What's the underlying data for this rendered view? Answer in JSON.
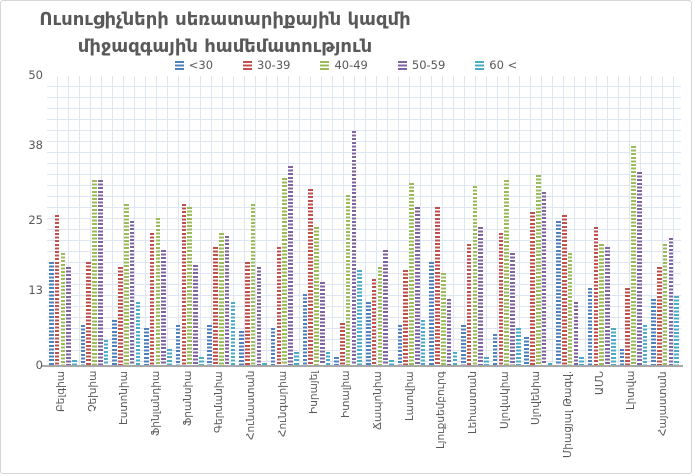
{
  "chart": {
    "title_line1": "Ուսուցիչների սեռատարիքային կազմի",
    "title_line2": "միջազգային համեմատություն"
  },
  "chart_data": {
    "type": "bar",
    "title": "Ուսուցիչների սեռատարիքային կազմի միջազգային համեմատություն",
    "xlabel": "",
    "ylabel": "",
    "ylim": [
      0,
      50
    ],
    "y_ticks": [
      0,
      13,
      25,
      38,
      50
    ],
    "grid": "fine dotted mesh, both directions",
    "legend_position": "top",
    "bar_fill_pattern": "horizontal-stripes",
    "categories": [
      "Բելգիա",
      "Չեխիա",
      "Էստոնիա",
      "Ֆինլանդիա",
      "Ֆրանսիա",
      "Գերմանիա",
      "Հունաստան",
      "Հունգարիա",
      "Իսրայել",
      "Իտալիա",
      "Ճապոնիա",
      "Լատվիա",
      "Լյուքսեմբուրգ",
      "Լեհաստան",
      "Սլովակիա",
      "Սլովենիա",
      "Միացյալ Թագվ.",
      "ԱՄՆ",
      "Լիտվա",
      "Հայաստան"
    ],
    "series": [
      {
        "name": "<30",
        "color": "#4F81BD",
        "values": [
          18,
          7,
          8,
          6.5,
          7,
          7,
          6,
          6.5,
          12.5,
          1.5,
          11,
          7,
          18,
          7,
          5.5,
          5,
          25,
          13.5,
          3,
          11.5
        ]
      },
      {
        "name": "30-39",
        "color": "#C0504D",
        "values": [
          26,
          18,
          17,
          23,
          28,
          20.5,
          18,
          20.5,
          30.5,
          7.5,
          15,
          16.5,
          27.5,
          21,
          23,
          26.5,
          26,
          24,
          13.5,
          17
        ]
      },
      {
        "name": "40-49",
        "color": "#9BBB59",
        "values": [
          19.5,
          32,
          28,
          25.5,
          27.5,
          23,
          28,
          32.5,
          24,
          29.5,
          17,
          31.5,
          16,
          31,
          32,
          33,
          19.5,
          21,
          38,
          21
        ]
      },
      {
        "name": "50-59",
        "color": "#8064A2",
        "values": [
          17,
          32,
          25,
          20,
          17.5,
          22.5,
          17,
          34.5,
          14.5,
          40.5,
          20,
          27.5,
          11.5,
          24,
          19.5,
          30,
          11,
          20.5,
          33.5,
          22
        ]
      },
      {
        "name": "60 <",
        "color": "#4BACC6",
        "values": [
          1,
          4.5,
          11,
          3,
          1.5,
          11,
          0.5,
          2.5,
          2.5,
          16.5,
          1,
          8,
          2.5,
          1.5,
          6.5,
          0.5,
          1.5,
          6.5,
          7,
          12
        ]
      }
    ]
  }
}
